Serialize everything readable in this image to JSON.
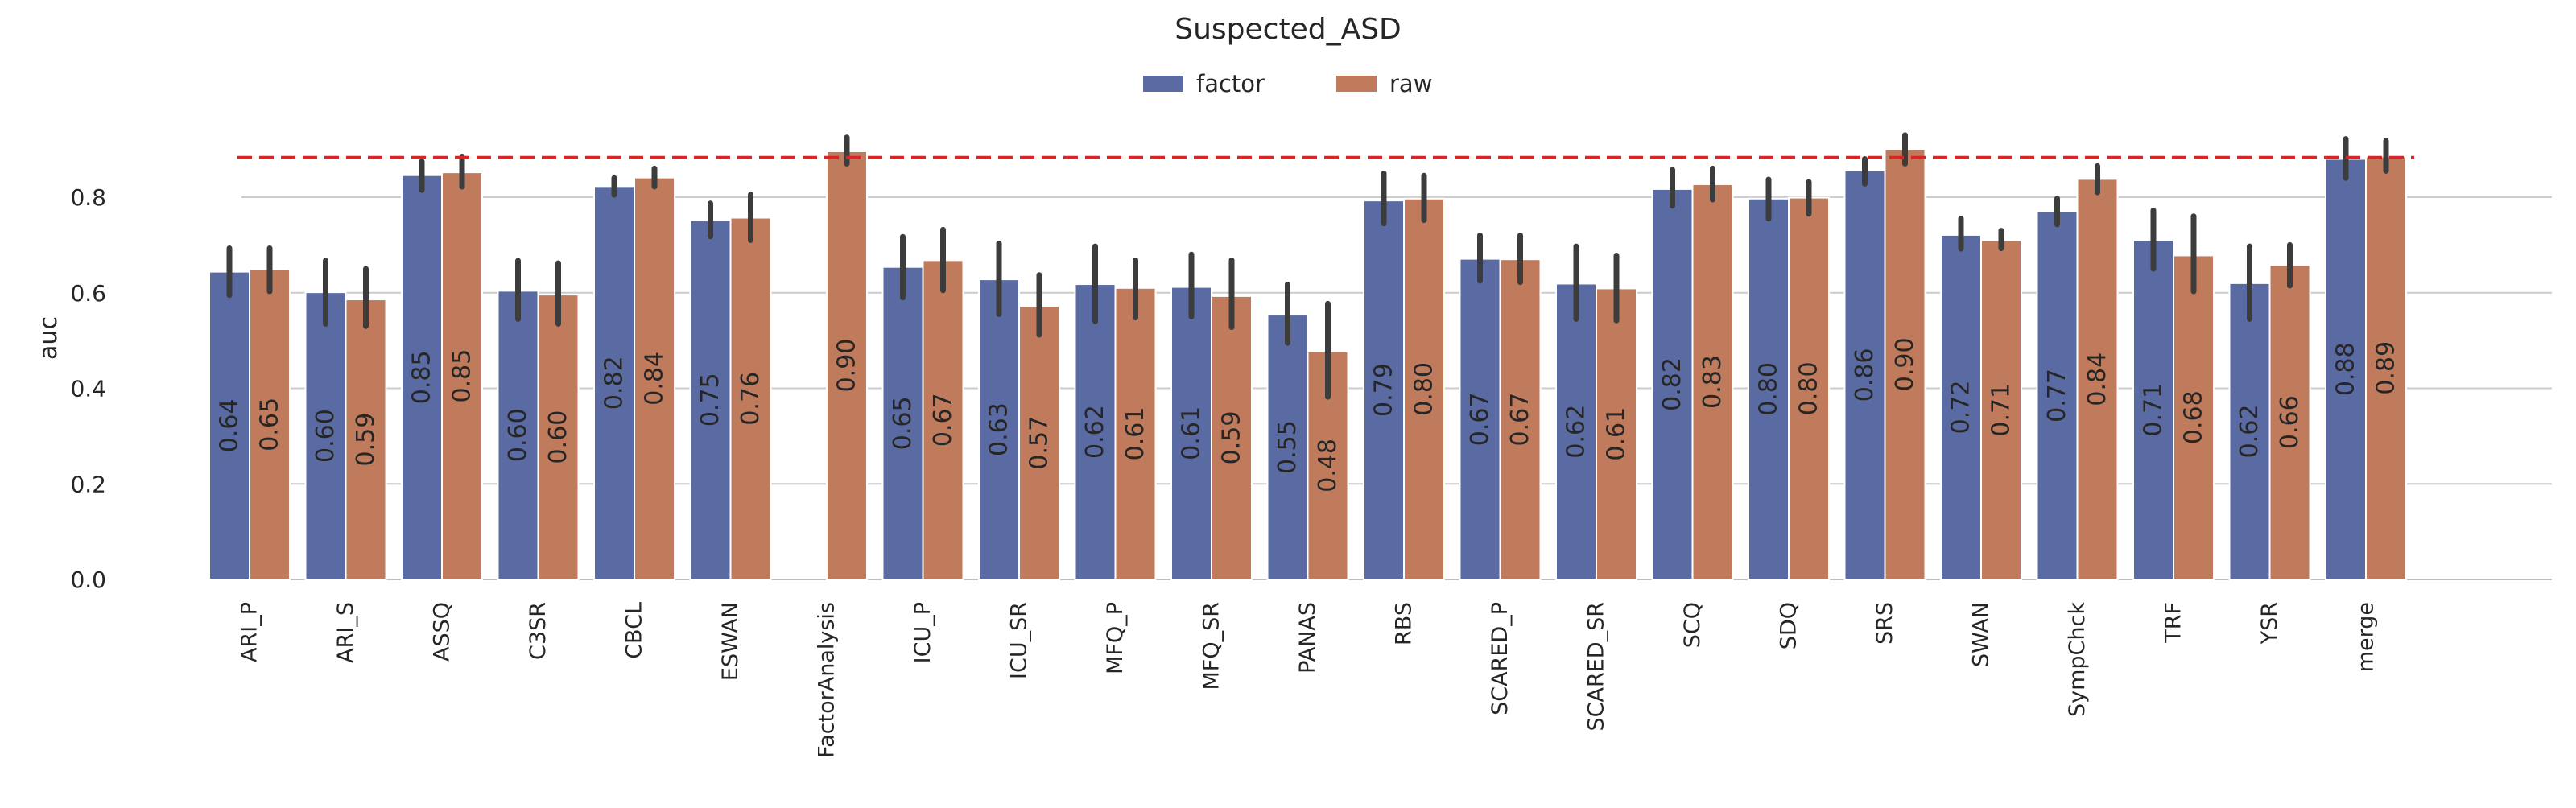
{
  "chart_data": {
    "type": "bar",
    "title": "Suspected_ASD",
    "xlabel": "",
    "ylabel": "auc",
    "ylim": [
      0,
      0.96
    ],
    "yticks": [
      0.0,
      0.2,
      0.4,
      0.6,
      0.8
    ],
    "ytick_labels": [
      "0.0",
      "0.2",
      "0.4",
      "0.6",
      "0.8"
    ],
    "grid": "horizontal",
    "legend_position": "top-center",
    "reference_line": {
      "y": 0.883,
      "style": "dashed",
      "color": "#d62728"
    },
    "categories": [
      "ARI_P",
      "ARI_S",
      "ASSQ",
      "C3SR",
      "CBCL",
      "ESWAN",
      "FactorAnalysis",
      "ICU_P",
      "ICU_SR",
      "MFQ_P",
      "MFQ_SR",
      "PANAS",
      "RBS",
      "SCARED_P",
      "SCARED_SR",
      "SCQ",
      "SDQ",
      "SRS",
      "SWAN",
      "SympChck",
      "TRF",
      "YSR",
      "merge"
    ],
    "series": [
      {
        "name": "factor",
        "color": "#5a6aa3",
        "values": [
          0.644,
          0.601,
          0.846,
          0.604,
          0.823,
          0.752,
          null,
          0.654,
          0.628,
          0.618,
          0.612,
          0.554,
          0.793,
          0.671,
          0.619,
          0.817,
          0.797,
          0.856,
          0.721,
          0.77,
          0.71,
          0.62,
          0.88
        ],
        "labels": [
          "0.64",
          "0.60",
          "0.85",
          "0.60",
          "0.82",
          "0.75",
          "",
          "0.65",
          "0.63",
          "0.62",
          "0.61",
          "0.55",
          "0.79",
          "0.67",
          "0.62",
          "0.82",
          "0.80",
          "0.86",
          "0.72",
          "0.77",
          "0.71",
          "0.62",
          "0.88"
        ],
        "ci": [
          [
            0.595,
            0.693
          ],
          [
            0.535,
            0.667
          ],
          [
            0.815,
            0.875
          ],
          [
            0.545,
            0.667
          ],
          [
            0.805,
            0.84
          ],
          [
            0.718,
            0.787
          ],
          null,
          [
            0.59,
            0.717
          ],
          [
            0.555,
            0.703
          ],
          [
            0.54,
            0.697
          ],
          [
            0.55,
            0.68
          ],
          [
            0.495,
            0.617
          ],
          [
            0.745,
            0.85
          ],
          [
            0.625,
            0.72
          ],
          [
            0.545,
            0.697
          ],
          [
            0.782,
            0.857
          ],
          [
            0.755,
            0.837
          ],
          [
            0.828,
            0.88
          ],
          [
            0.692,
            0.755
          ],
          [
            0.743,
            0.797
          ],
          [
            0.65,
            0.772
          ],
          [
            0.545,
            0.697
          ],
          [
            0.84,
            0.922
          ]
        ]
      },
      {
        "name": "raw",
        "color": "#c07a5c",
        "values": [
          0.649,
          0.586,
          0.852,
          0.596,
          0.841,
          0.757,
          0.896,
          0.668,
          0.572,
          0.61,
          0.593,
          0.477,
          0.797,
          0.67,
          0.609,
          0.827,
          0.799,
          0.9,
          0.71,
          0.838,
          0.678,
          0.658,
          0.885
        ],
        "labels": [
          "0.65",
          "0.59",
          "0.85",
          "0.60",
          "0.84",
          "0.76",
          "0.90",
          "0.67",
          "0.57",
          "0.61",
          "0.59",
          "0.48",
          "0.80",
          "0.67",
          "0.61",
          "0.83",
          "0.80",
          "0.90",
          "0.71",
          "0.84",
          "0.68",
          "0.66",
          "0.89"
        ],
        "ci": [
          [
            0.603,
            0.693
          ],
          [
            0.53,
            0.65
          ],
          [
            0.822,
            0.885
          ],
          [
            0.535,
            0.662
          ],
          [
            0.822,
            0.86
          ],
          [
            0.71,
            0.805
          ],
          [
            0.87,
            0.925
          ],
          [
            0.605,
            0.732
          ],
          [
            0.512,
            0.637
          ],
          [
            0.548,
            0.668
          ],
          [
            0.528,
            0.668
          ],
          [
            0.382,
            0.577
          ],
          [
            0.752,
            0.845
          ],
          [
            0.622,
            0.72
          ],
          [
            0.542,
            0.678
          ],
          [
            0.795,
            0.86
          ],
          [
            0.765,
            0.832
          ],
          [
            0.87,
            0.93
          ],
          [
            0.693,
            0.73
          ],
          [
            0.81,
            0.865
          ],
          [
            0.603,
            0.76
          ],
          [
            0.615,
            0.7
          ],
          [
            0.855,
            0.918
          ]
        ]
      }
    ]
  }
}
